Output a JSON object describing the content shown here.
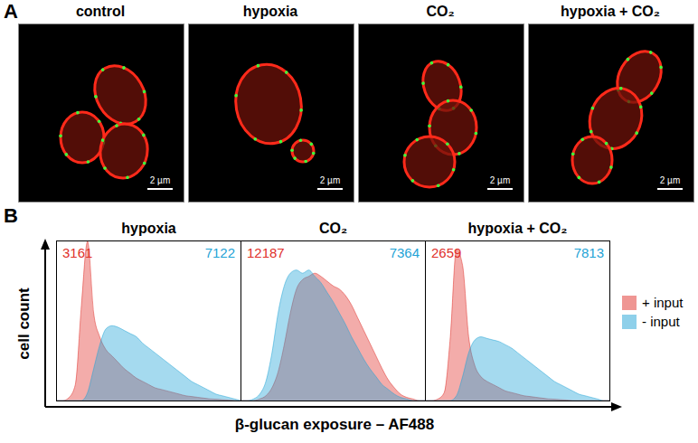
{
  "panel_labels": [
    "A",
    "B"
  ],
  "images": [
    {
      "title": "control",
      "scale_bar": "2 µm"
    },
    {
      "title": "hypoxia",
      "scale_bar": "2 µm"
    },
    {
      "title": "CO₂",
      "scale_bar": "2 µm"
    },
    {
      "title": "hypoxia + CO₂",
      "scale_bar": "2 µm"
    }
  ],
  "y_label": "cell count",
  "x_label": "β-glucan exposure – AF488",
  "legend": "right",
  "chart_data": [
    {
      "type": "area",
      "title": "hypoxia",
      "tick_labels": false,
      "xlim": [
        0,
        30
      ],
      "ylim": [
        0,
        100
      ],
      "x": [
        0,
        1,
        2,
        3,
        4,
        5,
        6,
        7,
        8,
        9,
        10,
        11,
        12,
        13,
        14,
        15,
        16,
        17,
        18,
        19,
        20,
        21,
        22,
        23,
        24,
        25,
        26,
        27,
        28,
        29,
        30
      ],
      "series": [
        {
          "name": "+ input",
          "color": "#e0302a",
          "median": 3161,
          "values": [
            0,
            0,
            2,
            10,
            60,
            100,
            55,
            40,
            32,
            28,
            24,
            20,
            17,
            14,
            12,
            10,
            8,
            7,
            6,
            5,
            4,
            3,
            2.5,
            2,
            1.5,
            1,
            0.8,
            0.5,
            0.3,
            0,
            0
          ]
        },
        {
          "name": "- input",
          "color": "#1fa3d6",
          "median": 7122,
          "values": [
            0,
            0,
            0,
            0,
            0,
            5,
            20,
            35,
            45,
            47,
            46,
            44,
            42,
            40,
            36,
            33,
            30,
            27,
            24,
            21,
            18,
            15,
            12,
            10,
            8,
            6,
            4,
            3,
            2,
            1,
            0
          ]
        }
      ]
    },
    {
      "type": "area",
      "title": "CO₂",
      "tick_labels": false,
      "xlim": [
        0,
        30
      ],
      "ylim": [
        0,
        100
      ],
      "x": [
        0,
        1,
        2,
        3,
        4,
        5,
        6,
        7,
        8,
        9,
        10,
        11,
        12,
        13,
        14,
        15,
        16,
        17,
        18,
        19,
        20,
        21,
        22,
        23,
        24,
        25,
        26,
        27,
        28,
        29,
        30
      ],
      "series": [
        {
          "name": "+ input",
          "color": "#e0302a",
          "median": 12187,
          "values": [
            0,
            0,
            0,
            1,
            3,
            8,
            18,
            35,
            55,
            70,
            76,
            78,
            80,
            78,
            75,
            72,
            70,
            66,
            60,
            52,
            44,
            36,
            28,
            20,
            13,
            8,
            4,
            2,
            1,
            0,
            0
          ]
        },
        {
          "name": "- input",
          "color": "#1fa3d6",
          "median": 7364,
          "values": [
            0,
            0,
            1,
            4,
            12,
            30,
            55,
            72,
            80,
            82,
            80,
            82,
            78,
            74,
            68,
            62,
            55,
            48,
            40,
            33,
            26,
            20,
            15,
            10,
            7,
            4,
            2,
            1,
            0,
            0,
            0
          ]
        }
      ]
    },
    {
      "type": "area",
      "title": "hypoxia + CO₂",
      "tick_labels": false,
      "xlim": [
        0,
        30
      ],
      "ylim": [
        0,
        100
      ],
      "x": [
        0,
        1,
        2,
        3,
        4,
        5,
        6,
        7,
        8,
        9,
        10,
        11,
        12,
        13,
        14,
        15,
        16,
        17,
        18,
        19,
        20,
        21,
        22,
        23,
        24,
        25,
        26,
        27,
        28,
        29,
        30
      ],
      "series": [
        {
          "name": "+ input",
          "color": "#e0302a",
          "median": 2659,
          "values": [
            0,
            0,
            1,
            5,
            40,
            95,
            85,
            40,
            22,
            15,
            12,
            10,
            8,
            6,
            5,
            4,
            3,
            2.5,
            2,
            1.5,
            1,
            0.8,
            0.5,
            0.3,
            0,
            0,
            0,
            0,
            0,
            0,
            0
          ]
        },
        {
          "name": "- input",
          "color": "#1fa3d6",
          "median": 7813,
          "values": [
            0,
            0,
            0,
            0,
            0,
            3,
            15,
            30,
            38,
            40,
            39,
            38,
            37,
            35,
            33,
            30,
            27,
            24,
            21,
            18,
            15,
            12,
            10,
            8,
            6,
            4,
            3,
            2,
            1,
            0,
            0
          ]
        }
      ]
    }
  ]
}
